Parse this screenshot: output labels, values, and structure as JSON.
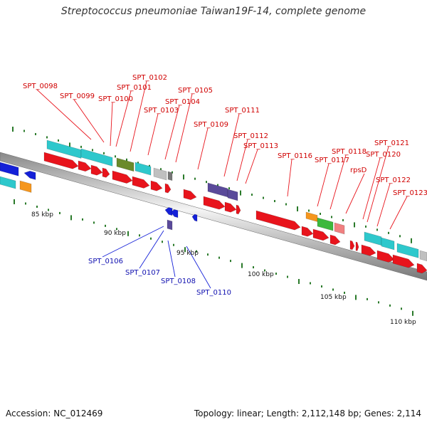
{
  "title": "Streptococcus pneumoniae Taiwan19F-14, complete genome",
  "footer": {
    "accession": "Accession: NC_012469",
    "topology": "Topology: linear; Length: 2,112,148 bp; Genes: 2,114"
  },
  "scale_labels": [
    "85 kbp",
    "90 kbp",
    "95 kbp",
    "100 kbp",
    "105 kbp",
    "110 kbp"
  ],
  "labels_forward": [
    "SPT_0098",
    "SPT_0099",
    "SPT_0100",
    "SPT_0101",
    "SPT_0102",
    "SPT_0103",
    "SPT_0104",
    "SPT_0105",
    "SPT_0109",
    "SPT_0111",
    "SPT_0112",
    "SPT_0113",
    "SPT_0116",
    "SPT_0117",
    "SPT_0118",
    "rpsD",
    "SPT_0120",
    "SPT_0121",
    "SPT_0122",
    "SPT_0123"
  ],
  "labels_reverse": [
    "SPT_0106",
    "SPT_0107",
    "SPT_0108",
    "SPT_0110"
  ],
  "colors": {
    "forward_gene": "#e8141c",
    "reverse_gene": "#1420d8",
    "cyan": "#2ec8cc",
    "purple": "#5a4a9a",
    "olive": "#6b8a2a",
    "green": "#3cb83c",
    "orange": "#f5961e",
    "pink": "#f08080",
    "gray": "#c0c0c0",
    "tick": "#2a7a2a"
  }
}
